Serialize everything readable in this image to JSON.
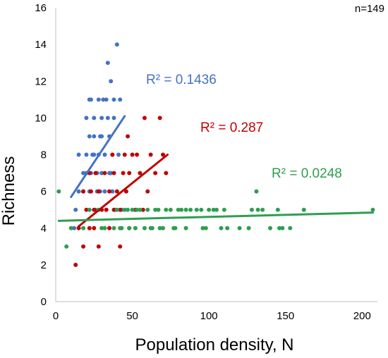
{
  "chart_data": {
    "type": "scatter",
    "title": "",
    "xlabel": "Population density, N",
    "ylabel": "Richness",
    "xlim": [
      0,
      210
    ],
    "ylim": [
      0,
      16
    ],
    "x_ticks": [
      "0",
      "50",
      "100",
      "150",
      "200"
    ],
    "y_ticks": [
      "0",
      "2",
      "4",
      "6",
      "8",
      "10",
      "12",
      "14",
      "16"
    ],
    "sample_size_label": "n=149",
    "grid": false,
    "series": [
      {
        "color": "#4472c4",
        "r2_label": "R² = 0.1436",
        "trendline": [
          [
            10,
            5.7
          ],
          [
            45,
            10.1
          ]
        ],
        "points": [
          [
            12,
            4
          ],
          [
            13,
            5
          ],
          [
            15,
            6
          ],
          [
            15,
            8
          ],
          [
            18,
            6
          ],
          [
            18,
            7
          ],
          [
            20,
            7
          ],
          [
            20,
            8
          ],
          [
            20,
            10
          ],
          [
            22,
            9
          ],
          [
            22,
            11
          ],
          [
            22,
            6
          ],
          [
            23,
            7
          ],
          [
            24,
            8
          ],
          [
            25,
            10
          ],
          [
            25,
            9
          ],
          [
            26,
            5
          ],
          [
            27,
            7
          ],
          [
            28,
            8
          ],
          [
            28,
            11
          ],
          [
            29,
            6
          ],
          [
            30,
            10
          ],
          [
            30,
            7
          ],
          [
            30,
            9
          ],
          [
            31,
            11
          ],
          [
            32,
            8
          ],
          [
            32,
            6
          ],
          [
            33,
            5
          ],
          [
            33,
            11
          ],
          [
            34,
            10
          ],
          [
            34,
            13
          ],
          [
            35,
            9
          ],
          [
            35,
            7
          ],
          [
            36,
            12
          ],
          [
            37,
            8
          ],
          [
            37,
            6
          ],
          [
            38,
            10
          ],
          [
            38,
            11
          ],
          [
            39,
            5
          ],
          [
            40,
            14
          ],
          [
            41,
            8
          ],
          [
            42,
            11
          ],
          [
            43,
            5
          ],
          [
            23,
            11
          ],
          [
            25,
            8
          ],
          [
            27,
            6
          ],
          [
            29,
            9
          ],
          [
            36,
            7
          ]
        ]
      },
      {
        "color": "#c00000",
        "r2_label": "R² = 0.287",
        "trendline": [
          [
            15,
            4.1
          ],
          [
            73,
            8.0
          ]
        ],
        "points": [
          [
            13,
            2
          ],
          [
            15,
            4
          ],
          [
            18,
            3
          ],
          [
            18,
            6
          ],
          [
            20,
            5
          ],
          [
            22,
            4
          ],
          [
            22,
            7
          ],
          [
            23,
            6
          ],
          [
            25,
            4
          ],
          [
            25,
            5
          ],
          [
            28,
            3
          ],
          [
            28,
            6
          ],
          [
            30,
            5
          ],
          [
            32,
            7
          ],
          [
            33,
            5
          ],
          [
            35,
            4
          ],
          [
            35,
            6
          ],
          [
            37,
            8
          ],
          [
            38,
            5
          ],
          [
            38,
            7
          ],
          [
            40,
            6
          ],
          [
            42,
            3
          ],
          [
            42,
            5
          ],
          [
            44,
            7
          ],
          [
            45,
            8
          ],
          [
            46,
            6
          ],
          [
            47,
            9
          ],
          [
            48,
            4
          ],
          [
            48,
            7
          ],
          [
            50,
            8
          ],
          [
            52,
            5
          ],
          [
            55,
            7
          ],
          [
            58,
            10
          ],
          [
            60,
            6
          ],
          [
            62,
            8
          ],
          [
            65,
            7
          ],
          [
            68,
            10
          ],
          [
            70,
            8
          ],
          [
            72,
            7
          ],
          [
            53,
            8
          ],
          [
            57,
            5
          ],
          [
            26,
            7
          ]
        ]
      },
      {
        "color": "#2e9e4f",
        "r2_label": "R² = 0.0248",
        "trendline": [
          [
            2,
            4.4
          ],
          [
            207,
            4.85
          ]
        ],
        "points": [
          [
            2,
            6
          ],
          [
            7,
            3
          ],
          [
            10,
            4
          ],
          [
            22,
            5
          ],
          [
            28,
            5
          ],
          [
            32,
            4
          ],
          [
            38,
            4
          ],
          [
            40,
            5
          ],
          [
            43,
            4
          ],
          [
            45,
            5
          ],
          [
            48,
            4
          ],
          [
            50,
            5
          ],
          [
            52,
            4
          ],
          [
            55,
            5
          ],
          [
            60,
            5
          ],
          [
            63,
            4
          ],
          [
            65,
            5
          ],
          [
            68,
            4
          ],
          [
            72,
            5
          ],
          [
            75,
            5
          ],
          [
            78,
            4
          ],
          [
            80,
            5
          ],
          [
            85,
            4
          ],
          [
            88,
            5
          ],
          [
            95,
            5
          ],
          [
            98,
            4
          ],
          [
            100,
            5
          ],
          [
            103,
            5
          ],
          [
            108,
            4
          ],
          [
            110,
            5
          ],
          [
            112,
            4
          ],
          [
            128,
            5
          ],
          [
            131,
            6
          ],
          [
            132,
            5
          ],
          [
            140,
            4
          ],
          [
            146,
            4
          ],
          [
            148,
            4
          ],
          [
            153,
            4
          ],
          [
            162,
            5
          ],
          [
            207,
            5
          ],
          [
            85,
            5
          ],
          [
            120,
            4
          ],
          [
            70,
            4
          ],
          [
            58,
            4
          ],
          [
            30,
            4
          ],
          [
            18,
            4
          ],
          [
            42,
            4
          ],
          [
            47,
            5
          ],
          [
            53,
            5
          ],
          [
            62,
            4
          ],
          [
            67,
            5
          ],
          [
            77,
            4
          ],
          [
            82,
            5
          ],
          [
            92,
            5
          ],
          [
            96,
            4
          ],
          [
            105,
            5
          ],
          [
            126,
            4
          ],
          [
            135,
            5
          ],
          [
            145,
            5
          ]
        ]
      }
    ]
  }
}
